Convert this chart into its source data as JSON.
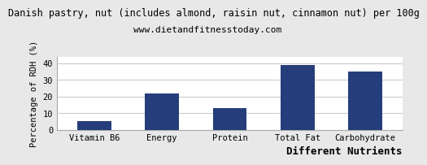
{
  "title": "Danish pastry, nut (includes almond, raisin nut, cinnamon nut) per 100g",
  "subtitle": "www.dietandfitnesstoday.com",
  "categories": [
    "Vitamin B6",
    "Energy",
    "Protein",
    "Total Fat",
    "Carbohydrate"
  ],
  "values": [
    5,
    22,
    13,
    39,
    35
  ],
  "bar_color": "#253d7a",
  "xlabel": "Different Nutrients",
  "ylabel": "Percentage of RDH (%)",
  "ylim": [
    0,
    44
  ],
  "yticks": [
    0,
    10,
    20,
    30,
    40
  ],
  "title_fontsize": 8.5,
  "subtitle_fontsize": 8,
  "xlabel_fontsize": 9,
  "ylabel_fontsize": 7.5,
  "tick_fontsize": 7.5,
  "background_color": "#e8e8e8",
  "plot_bg_color": "#ffffff",
  "grid_color": "#cccccc"
}
